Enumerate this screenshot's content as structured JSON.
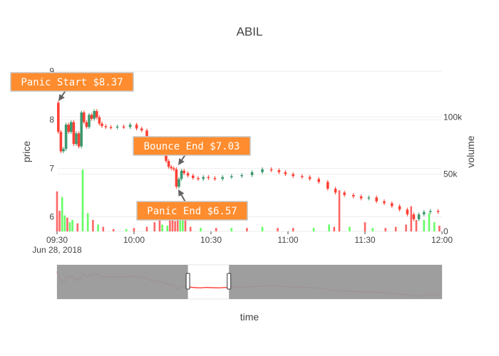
{
  "chart_data": {
    "type": "candlestick",
    "title": "ABIL",
    "xlabel": "time",
    "ylabel": "price",
    "y2label": "volume",
    "date_label": "Jun 28, 2018",
    "x_ticks": [
      "09:30",
      "10:00",
      "10:30",
      "11:00",
      "11:30",
      "12:00"
    ],
    "x_range": [
      "09:30",
      "12:00"
    ],
    "y_ticks": [
      6,
      7,
      8,
      9
    ],
    "y_range": [
      5.7,
      9.0
    ],
    "volume_ticks": [
      0,
      50000,
      100000
    ],
    "volume_tick_labels": [
      "0",
      "50k",
      "100k"
    ],
    "volume_range": [
      0,
      140000
    ],
    "colors": {
      "increasing": "#3d9970",
      "decreasing": "#ff4136",
      "vol_up": "#66ff66",
      "vol_down": "#ff6666",
      "annotation_bg": "#ff8c2e",
      "annotation_border": "#c7c7c7",
      "rangeslider_bg": "#999999",
      "arrow": "#636363"
    },
    "annotations": [
      {
        "text": "Panic Start $8.37",
        "time": "09:31",
        "price": 8.37
      },
      {
        "text": "Bounce End $7.03",
        "time": "10:17",
        "price": 7.03
      },
      {
        "text": "Panic End $6.57",
        "time": "10:17",
        "price": 6.57
      }
    ],
    "rangeslider": {
      "window_start": "10:21",
      "window_end": "10:37"
    },
    "price_path": [
      [
        "09:30",
        8.35
      ],
      [
        "09:31",
        7.75
      ],
      [
        "09:32",
        7.35
      ],
      [
        "09:33",
        7.4
      ],
      [
        "09:34",
        7.9
      ],
      [
        "09:35",
        7.75
      ],
      [
        "09:36",
        7.95
      ],
      [
        "09:37",
        7.5
      ],
      [
        "09:38",
        7.72
      ],
      [
        "09:39",
        7.45
      ],
      [
        "09:40",
        8.15
      ],
      [
        "09:41",
        7.95
      ],
      [
        "09:42",
        7.85
      ],
      [
        "09:43",
        8.1
      ],
      [
        "09:44",
        8.02
      ],
      [
        "09:45",
        8.18
      ],
      [
        "09:46",
        8.05
      ],
      [
        "09:47",
        7.92
      ],
      [
        "09:48",
        7.87
      ],
      [
        "09:50",
        7.85
      ],
      [
        "09:52",
        7.84
      ],
      [
        "09:55",
        7.86
      ],
      [
        "09:57",
        7.85
      ],
      [
        "10:00",
        7.9
      ],
      [
        "10:02",
        7.82
      ],
      [
        "10:04",
        7.78
      ],
      [
        "10:06",
        7.55
      ],
      [
        "10:08",
        7.45
      ],
      [
        "10:10",
        7.38
      ],
      [
        "10:12",
        7.3
      ],
      [
        "10:13",
        7.15
      ],
      [
        "10:14",
        7.03
      ],
      [
        "10:15",
        7.0
      ],
      [
        "10:16",
        6.98
      ],
      [
        "10:17",
        6.62
      ],
      [
        "10:18",
        6.78
      ],
      [
        "10:19",
        6.95
      ],
      [
        "10:20",
        6.9
      ],
      [
        "10:22",
        6.85
      ],
      [
        "10:24",
        6.8
      ],
      [
        "10:26",
        6.78
      ],
      [
        "10:28",
        6.82
      ],
      [
        "10:30",
        6.8
      ],
      [
        "10:33",
        6.78
      ],
      [
        "10:36",
        6.82
      ],
      [
        "10:40",
        6.84
      ],
      [
        "10:44",
        6.86
      ],
      [
        "10:48",
        6.92
      ],
      [
        "10:52",
        6.98
      ],
      [
        "10:55",
        6.96
      ],
      [
        "10:58",
        6.92
      ],
      [
        "11:00",
        6.88
      ],
      [
        "11:04",
        6.84
      ],
      [
        "11:07",
        6.82
      ],
      [
        "11:10",
        6.78
      ],
      [
        "11:14",
        6.72
      ],
      [
        "11:17",
        6.58
      ],
      [
        "11:20",
        6.5
      ],
      [
        "11:24",
        6.45
      ],
      [
        "11:27",
        6.42
      ],
      [
        "11:30",
        6.38
      ],
      [
        "11:33",
        6.4
      ],
      [
        "11:36",
        6.32
      ],
      [
        "11:39",
        6.28
      ],
      [
        "11:42",
        6.22
      ],
      [
        "11:45",
        6.15
      ],
      [
        "11:48",
        6.05
      ],
      [
        "11:50",
        5.95
      ],
      [
        "11:52",
        6.05
      ],
      [
        "11:54",
        6.1
      ],
      [
        "11:57",
        6.12
      ],
      [
        "12:00",
        6.1
      ]
    ],
    "volume": [
      [
        "09:30",
        35000,
        "down"
      ],
      [
        "09:31",
        18000,
        "down"
      ],
      [
        "09:32",
        30000,
        "up"
      ],
      [
        "09:33",
        14000,
        "up"
      ],
      [
        "09:34",
        12000,
        "down"
      ],
      [
        "09:35",
        8000,
        "up"
      ],
      [
        "09:36",
        10000,
        "up"
      ],
      [
        "09:38",
        7000,
        "down"
      ],
      [
        "09:40",
        54000,
        "up"
      ],
      [
        "09:42",
        16000,
        "up"
      ],
      [
        "09:44",
        10000,
        "down"
      ],
      [
        "09:46",
        6000,
        "up"
      ],
      [
        "09:48",
        4000,
        "down"
      ],
      [
        "09:52",
        2000,
        "down"
      ],
      [
        "09:57",
        2000,
        "up"
      ],
      [
        "10:00",
        3000,
        "down"
      ],
      [
        "10:05",
        4000,
        "down"
      ],
      [
        "10:08",
        8000,
        "down"
      ],
      [
        "10:10",
        14000,
        "down"
      ],
      [
        "10:11",
        6000,
        "up"
      ],
      [
        "10:13",
        5000,
        "up"
      ],
      [
        "10:14",
        12000,
        "down"
      ],
      [
        "10:15",
        10000,
        "down"
      ],
      [
        "10:16",
        9000,
        "down"
      ],
      [
        "10:17",
        15000,
        "down"
      ],
      [
        "10:18",
        24000,
        "up"
      ],
      [
        "10:19",
        20000,
        "up"
      ],
      [
        "10:20",
        12000,
        "down"
      ],
      [
        "10:22",
        4000,
        "down"
      ],
      [
        "10:26",
        3000,
        "up"
      ],
      [
        "10:32",
        3000,
        "down"
      ],
      [
        "10:38",
        3000,
        "up"
      ],
      [
        "10:44",
        3000,
        "down"
      ],
      [
        "10:50",
        4000,
        "up"
      ],
      [
        "10:56",
        3000,
        "down"
      ],
      [
        "11:02",
        3000,
        "down"
      ],
      [
        "11:10",
        3000,
        "up"
      ],
      [
        "11:16",
        6000,
        "up"
      ],
      [
        "11:18",
        4000,
        "down"
      ],
      [
        "11:20",
        36000,
        "down"
      ],
      [
        "11:24",
        4000,
        "up"
      ],
      [
        "11:30",
        8000,
        "down"
      ],
      [
        "11:33",
        3000,
        "up"
      ],
      [
        "11:38",
        3000,
        "down"
      ],
      [
        "11:42",
        4000,
        "down"
      ],
      [
        "11:46",
        6000,
        "down"
      ],
      [
        "11:48",
        22000,
        "down"
      ],
      [
        "11:50",
        10000,
        "down"
      ],
      [
        "11:53",
        10000,
        "up"
      ],
      [
        "11:55",
        16000,
        "up"
      ],
      [
        "11:57",
        8000,
        "up"
      ],
      [
        "11:59",
        5000,
        "down"
      ]
    ]
  }
}
